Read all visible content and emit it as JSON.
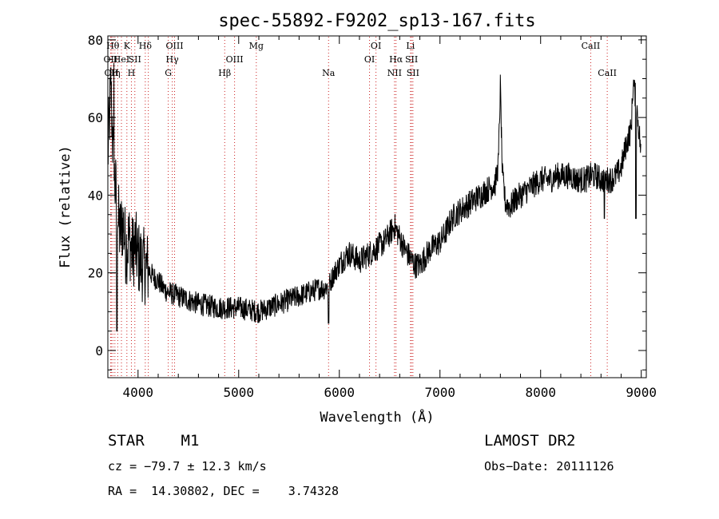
{
  "chart_data": {
    "type": "line",
    "title": "spec-55892-F9202_sp13-167.fits",
    "xlabel": "Wavelength (Å)",
    "ylabel": "Flux (relative)",
    "xlim": [
      3700,
      9050
    ],
    "ylim": [
      -7,
      81
    ],
    "x_ticks": [
      4000,
      5000,
      6000,
      7000,
      8000,
      9000
    ],
    "y_ticks": [
      0,
      20,
      40,
      60,
      80
    ],
    "grid": false,
    "line_color": "#000000",
    "marker_line_color": "#cc2222",
    "series": [
      {
        "x": [
          3700,
          3730,
          3760,
          3790,
          3820,
          3850,
          3880,
          3910,
          3940,
          3970,
          4000,
          4050,
          4100,
          4150,
          4200,
          4250,
          4300,
          4400,
          4500,
          4600,
          4700,
          4800,
          4900,
          5000,
          5100,
          5200,
          5300,
          5400,
          5500,
          5600,
          5700,
          5800,
          5850,
          5900,
          5950,
          6000,
          6050,
          6100,
          6150,
          6200,
          6250,
          6300,
          6350,
          6400,
          6450,
          6500,
          6550,
          6600,
          6650,
          6700,
          6750,
          6800,
          6850,
          6900,
          6950,
          7000,
          7050,
          7100,
          7150,
          7200,
          7250,
          7300,
          7350,
          7400,
          7450,
          7500,
          7550,
          7580,
          7600,
          7620,
          7650,
          7700,
          7750,
          7800,
          7850,
          7900,
          7950,
          8000,
          8050,
          8100,
          8150,
          8200,
          8250,
          8300,
          8350,
          8400,
          8450,
          8500,
          8550,
          8600,
          8650,
          8700,
          8750,
          8800,
          8850,
          8900,
          8920,
          8950,
          8980,
          9000
        ],
        "y": [
          50,
          68,
          45,
          38,
          30,
          33,
          26,
          29,
          25,
          27,
          24,
          22,
          21,
          19,
          18,
          16,
          15,
          14,
          13,
          12,
          11.5,
          11,
          11,
          11,
          10.5,
          10,
          11,
          12,
          13,
          14,
          15,
          16,
          16,
          17,
          20,
          22,
          24,
          25,
          24,
          23,
          24,
          25,
          26,
          27,
          28,
          30,
          32,
          29,
          26,
          24,
          22,
          22,
          24,
          26,
          27,
          28,
          30,
          33,
          35,
          36,
          37,
          38,
          39,
          40,
          41,
          42,
          43,
          48,
          68,
          45,
          38,
          37,
          39,
          40,
          41,
          42,
          43,
          44,
          44,
          44,
          45,
          45,
          45,
          45,
          44,
          44,
          44,
          45,
          45,
          44,
          44,
          44,
          45,
          47,
          53,
          57,
          69,
          64,
          56,
          50
        ]
      }
    ],
    "lines": [
      {
        "wl": 3727,
        "label": "OII",
        "row": 2
      },
      {
        "wl": 3735,
        "label": "OII",
        "row": 3
      },
      {
        "wl": 3750,
        "label": "Hθ",
        "row": 1
      },
      {
        "wl": 3770,
        "label": "H",
        "row": 3
      },
      {
        "wl": 3798,
        "label": "η",
        "row": 3
      },
      {
        "wl": 3835,
        "label": "HeI",
        "row": 2
      },
      {
        "wl": 3889,
        "label": "K",
        "row": 1
      },
      {
        "wl": 3934,
        "label": "H",
        "row": 3
      },
      {
        "wl": 3968,
        "label": "SII",
        "row": 2
      },
      {
        "wl": 4072,
        "label": "Hδ",
        "row": 1
      },
      {
        "wl": 4102,
        "label": "",
        "row": 0
      },
      {
        "wl": 4300,
        "label": "G",
        "row": 3
      },
      {
        "wl": 4340,
        "label": "Hγ",
        "row": 2
      },
      {
        "wl": 4363,
        "label": "OIII",
        "row": 1
      },
      {
        "wl": 4861,
        "label": "Hβ",
        "row": 3
      },
      {
        "wl": 4959,
        "label": "OIII",
        "row": 2
      },
      {
        "wl": 5175,
        "label": "Mg",
        "row": 1
      },
      {
        "wl": 5893,
        "label": "Na",
        "row": 3
      },
      {
        "wl": 6300,
        "label": "OI",
        "row": 2
      },
      {
        "wl": 6364,
        "label": "OI",
        "row": 1
      },
      {
        "wl": 6548,
        "label": "NII",
        "row": 3
      },
      {
        "wl": 6563,
        "label": "Hα",
        "row": 2
      },
      {
        "wl": 6707,
        "label": "Li",
        "row": 1
      },
      {
        "wl": 6717,
        "label": "SII",
        "row": 2
      },
      {
        "wl": 6731,
        "label": "SII",
        "row": 3
      },
      {
        "wl": 8498,
        "label": "CaII",
        "row": 1
      },
      {
        "wl": 8662,
        "label": "CaII",
        "row": 3
      }
    ]
  },
  "info": {
    "object_class": "STAR    M1",
    "survey": "LAMOST DR2",
    "velocity": "cz = −79.7 ± 12.3 km/s",
    "obs_date": "Obs−Date: 20111126",
    "coords": "RA =  14.30802, DEC =    3.74328"
  }
}
